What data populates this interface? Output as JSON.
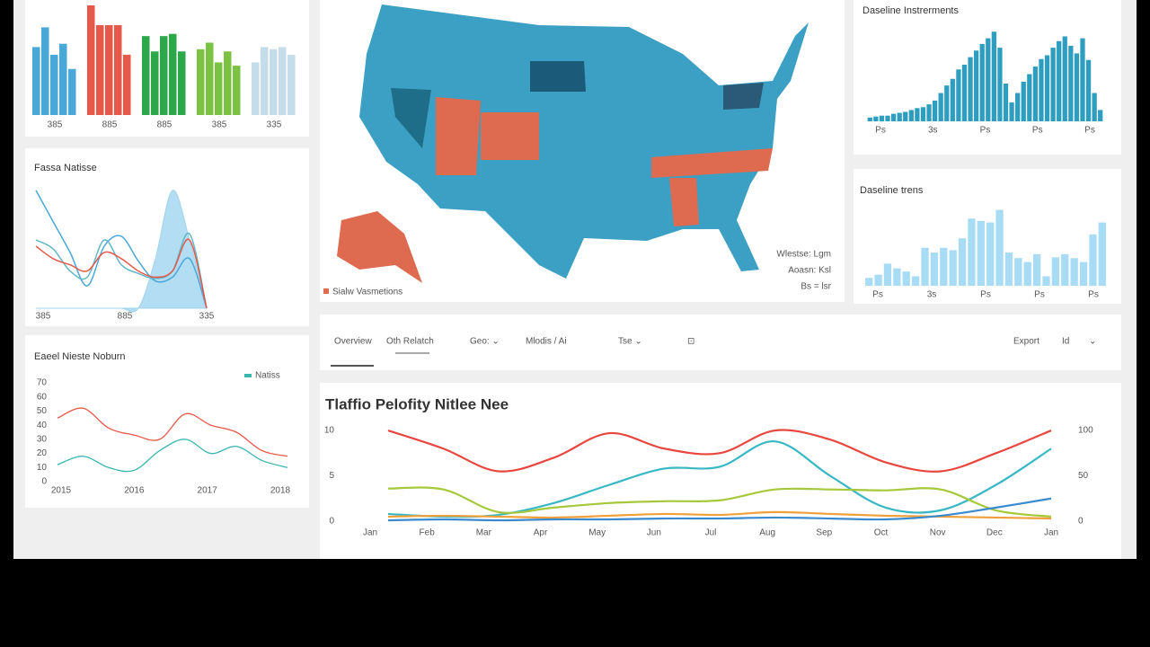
{
  "tabs": [
    "Overview",
    "Oth Relatch",
    "Geo: ⌄",
    "Mlodis / Ai",
    "Tse ⌄",
    "⊡"
  ],
  "buttons": [
    "Export",
    "Id",
    "⌄"
  ],
  "bar_panel": {
    "type": "bar",
    "ylim": [
      0,
      100
    ],
    "categories": [
      "385",
      "885",
      "885",
      "385",
      "335"
    ],
    "groups": [
      {
        "color": "#4aa8d8",
        "values": [
          62,
          80,
          55,
          65,
          42
        ]
      },
      {
        "color": "#e8584a",
        "values": [
          100,
          82,
          82,
          82,
          55
        ]
      },
      {
        "color": "#2ca84a",
        "values": [
          72,
          58,
          72,
          74,
          58
        ]
      },
      {
        "color": "#7cc242",
        "values": [
          60,
          66,
          48,
          58,
          45
        ]
      },
      {
        "color": "#c5dcea",
        "values": [
          48,
          62,
          60,
          62,
          55
        ]
      }
    ]
  },
  "trend_panel": {
    "type": "line",
    "title": "Fassa Natisse",
    "ylim": [
      0,
      100
    ],
    "categories": [
      "385",
      null,
      null,
      null,
      null,
      "885",
      null,
      null,
      null,
      null,
      "335"
    ],
    "area": {
      "color": "#9fd4ef",
      "values": [
        0,
        0,
        0,
        0,
        0,
        0,
        0,
        40,
        95,
        55,
        0
      ]
    },
    "series": [
      {
        "color": "#4aa8d8",
        "values": [
          95,
          70,
          45,
          18,
          50,
          58,
          38,
          22,
          25,
          40,
          0
        ]
      },
      {
        "color": "#5fb8c8",
        "values": [
          55,
          48,
          30,
          25,
          55,
          35,
          28,
          24,
          30,
          60,
          0
        ]
      },
      {
        "color": "#e8584a",
        "values": [
          50,
          40,
          35,
          30,
          45,
          40,
          30,
          25,
          30,
          55,
          0
        ]
      }
    ]
  },
  "line_panel": {
    "type": "line",
    "title": "Eaeel Nieste Noburn",
    "legend": "Natiss",
    "ylim": [
      0,
      70
    ],
    "yticks": [
      0,
      10,
      20,
      30,
      40,
      50,
      60,
      70
    ],
    "categories": [
      "2015",
      null,
      null,
      "2016",
      null,
      null,
      "2017",
      null,
      null,
      "2018"
    ],
    "series": [
      {
        "color": "#e8584a",
        "values": [
          45,
          52,
          38,
          33,
          30,
          48,
          40,
          35,
          22,
          18
        ]
      },
      {
        "color": "#3ab5b0",
        "values": [
          12,
          18,
          10,
          8,
          22,
          30,
          20,
          25,
          15,
          10
        ]
      }
    ]
  },
  "map_panel": {
    "legend": "Sialw Vasmetions",
    "notes": [
      "Wlestse: Lgm",
      "Aoasn: Ksl",
      "Bs = lsr"
    ]
  },
  "hist_panel": {
    "type": "bar",
    "title": "Daseline Instrerments",
    "ylim": [
      0,
      100
    ],
    "categories": [
      "Ps",
      "3s",
      "Ps",
      "Ps",
      "Ps"
    ],
    "values": [
      4,
      5,
      6,
      6,
      8,
      9,
      10,
      12,
      14,
      15,
      18,
      22,
      30,
      38,
      45,
      55,
      60,
      68,
      75,
      82,
      88,
      95,
      78,
      40,
      20,
      30,
      42,
      50,
      58,
      66,
      70,
      78,
      85,
      90,
      80,
      72,
      88,
      65,
      30,
      12
    ]
  },
  "bars2_panel": {
    "type": "bar",
    "title": "Daseline trens",
    "ylim": [
      0,
      100
    ],
    "categories": [
      "Ps",
      "3s",
      "Ps",
      "Ps",
      "Ps"
    ],
    "values": [
      10,
      14,
      28,
      22,
      18,
      12,
      48,
      42,
      48,
      45,
      60,
      85,
      82,
      80,
      96,
      42,
      35,
      30,
      40,
      12,
      36,
      40,
      35,
      30,
      65,
      80
    ]
  },
  "main": {
    "type": "line",
    "title": "Tlaffio Pelofity Nitlee Nee",
    "ylim": [
      0,
      10.5
    ],
    "yticks": [
      0,
      5,
      10
    ],
    "y2lim": [
      0,
      105
    ],
    "y2ticks": [
      0,
      50,
      100
    ],
    "categories": [
      "Jan",
      "Feb",
      "Mar",
      "Apr",
      "May",
      "Jun",
      "Jul",
      "Aug",
      "Sep",
      "Oct",
      "Nov",
      "Dec",
      "Jan"
    ],
    "series": [
      {
        "color": "#e8473f",
        "values": [
          10,
          8,
          5.5,
          7,
          9.7,
          8,
          7.5,
          10,
          9,
          6.5,
          5.5,
          7.5,
          10
        ]
      },
      {
        "color": "#37b8c4",
        "values": [
          0.8,
          0.5,
          0.7,
          2,
          4,
          5.8,
          6,
          8.8,
          5,
          1.5,
          1.2,
          4,
          8
        ]
      },
      {
        "color": "#a6c83a",
        "values": [
          3.6,
          3.5,
          1,
          1.5,
          2,
          2.2,
          2.3,
          3.5,
          3.5,
          3.4,
          3.5,
          1.2,
          0.5
        ]
      },
      {
        "color": "#f0a03a",
        "values": [
          0.5,
          0.6,
          0.5,
          0.4,
          0.6,
          0.8,
          0.7,
          1,
          0.8,
          0.6,
          0.5,
          0.4,
          0.3
        ]
      },
      {
        "color": "#3a8ad0",
        "values": [
          0.1,
          0.2,
          0.1,
          0.2,
          0.2,
          0.3,
          0.3,
          0.4,
          0.3,
          0.2,
          0.6,
          1.5,
          2.5
        ]
      }
    ]
  }
}
